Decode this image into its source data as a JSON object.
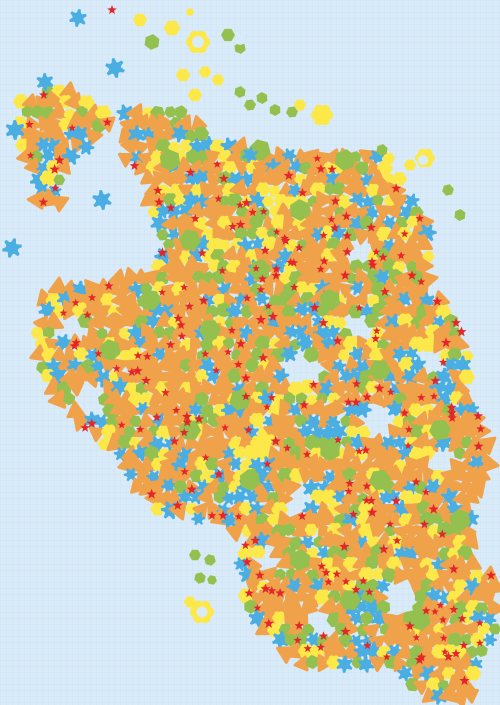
{
  "colors": {
    "background": "#d9ebf8",
    "grid": "#c5dcef",
    "orange": "#f0a24a",
    "yellow": "#fde84a",
    "blue": "#4aaee3",
    "green": "#94c04f",
    "red": "#e4262b"
  },
  "tile_shapes": [
    "gear-blue",
    "hexagon-green",
    "lobed-flower-yellow",
    "rounded-triangle-orange",
    "star-red"
  ]
}
